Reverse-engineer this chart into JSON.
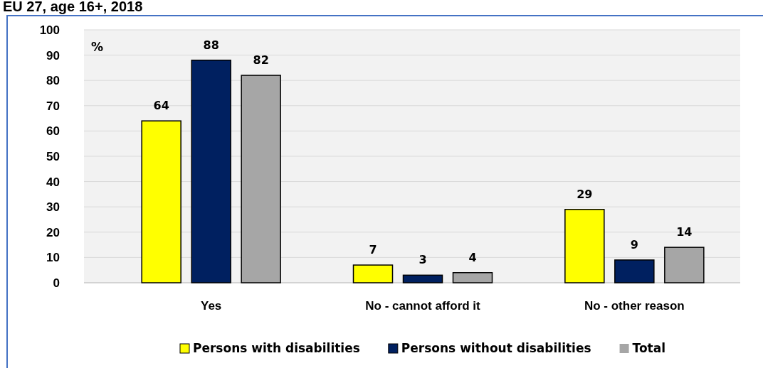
{
  "chart_data": {
    "type": "bar",
    "title": "EU 27, age 16+, 2018",
    "ylabel": "%",
    "categories": [
      "Yes",
      "No - cannot afford it",
      "No - other reason"
    ],
    "series": [
      {
        "name": "Persons with disabilities",
        "color": "#ffff00",
        "values": [
          64,
          7,
          29
        ]
      },
      {
        "name": "Persons without disabilities",
        "color": "#002060",
        "values": [
          88,
          3,
          9
        ]
      },
      {
        "name": "Total",
        "color": "#a6a6a6",
        "values": [
          82,
          4,
          14
        ]
      }
    ],
    "ylim": [
      0,
      100
    ],
    "yticks": [
      0,
      10,
      20,
      30,
      40,
      50,
      60,
      70,
      80,
      90,
      100
    ],
    "grid": "y",
    "data_labels": true,
    "legend": "bottom"
  }
}
